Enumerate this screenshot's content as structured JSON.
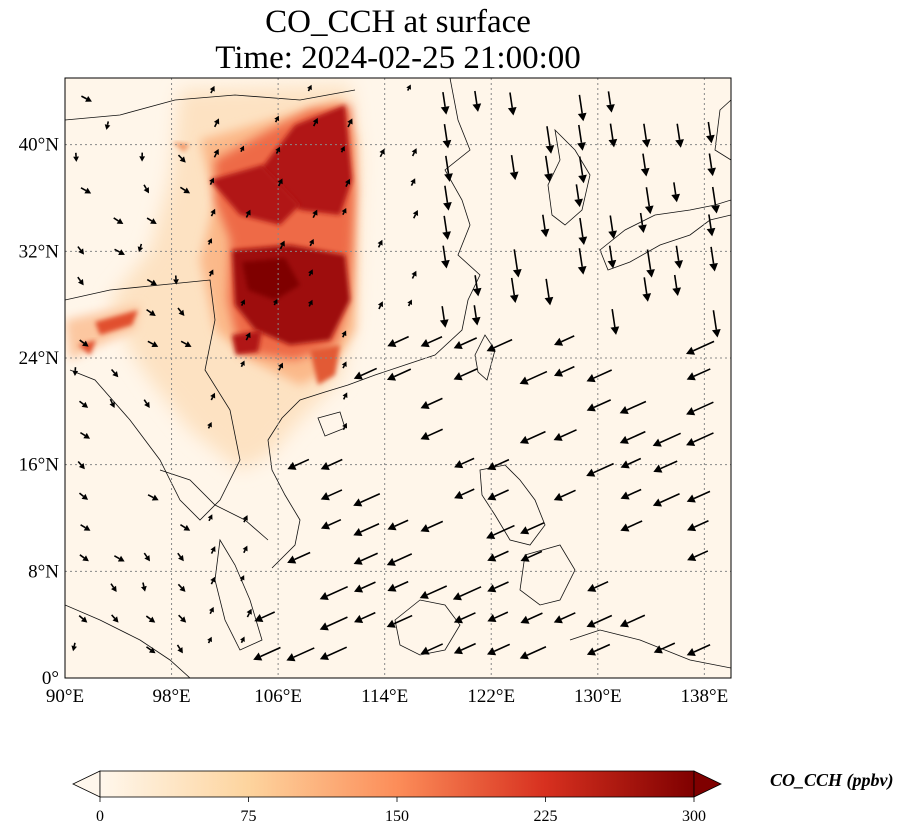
{
  "title": {
    "line1": "CO_CCH at surface",
    "line2": "Time: 2024-02-25 21:00:00"
  },
  "map": {
    "projection": "PlateCarree",
    "lon_range": [
      90,
      140
    ],
    "lat_range": [
      0,
      45
    ],
    "lon_ticks": [
      "90°E",
      "98°E",
      "106°E",
      "114°E",
      "122°E",
      "130°E",
      "138°E"
    ],
    "lat_ticks": [
      "0°",
      "8°N",
      "16°N",
      "24°N",
      "32°N",
      "40°N"
    ],
    "gridlines": "dotted",
    "coastlines": true,
    "vector_overlay": "wind arrows"
  },
  "colorbar": {
    "label": "CO_CCH (ppbv)",
    "colormap": "OrRd",
    "range": [
      0,
      300
    ],
    "ticks": [
      "0",
      "75",
      "150",
      "225",
      "300"
    ],
    "extend": "both",
    "colors": [
      "#fff7ec",
      "#fdd49e",
      "#fc8d59",
      "#d7301f",
      "#7f0000"
    ]
  }
}
